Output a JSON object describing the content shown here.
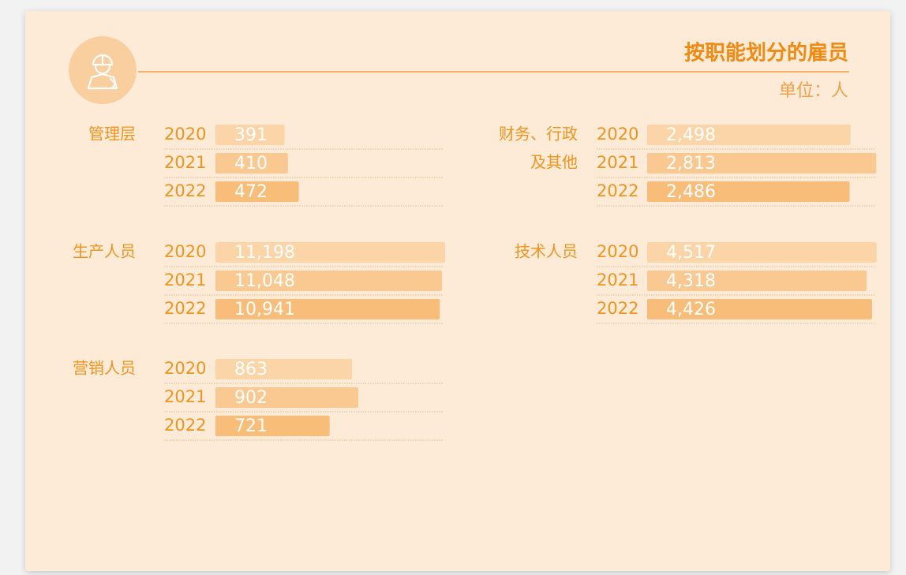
{
  "chart_data": {
    "type": "grouped-hbar",
    "title": "按职能划分的雇员",
    "unit": "单位：人",
    "categories": [
      "2020",
      "2021",
      "2022"
    ],
    "colors": [
      "#fbd5a8",
      "#f9c991",
      "#f8bd79"
    ],
    "groups": [
      {
        "label_lines": [
          "管理层"
        ],
        "values": [
          391,
          410,
          472
        ],
        "xlim": [
          0,
          1300
        ]
      },
      {
        "label_lines": [
          "生产人员"
        ],
        "values": [
          11198,
          11048,
          10941
        ],
        "value_labels": [
          "11,198",
          "11,048",
          "10,941"
        ],
        "xlim": [
          0,
          11200
        ]
      },
      {
        "label_lines": [
          "营销人员"
        ],
        "values": [
          863,
          902,
          721
        ],
        "xlim": [
          0,
          1450
        ]
      },
      {
        "label_lines": [
          "财务、行政",
          "及其他"
        ],
        "values": [
          2498,
          2813,
          2486
        ],
        "value_labels": [
          "2,498",
          "2,813",
          "2,486"
        ],
        "xlim": [
          0,
          2820
        ]
      },
      {
        "label_lines": [
          "技术人员"
        ],
        "values": [
          4517,
          4318,
          4426
        ],
        "value_labels": [
          "4,517",
          "4,318",
          "4,426"
        ],
        "xlim": [
          0,
          4520
        ]
      }
    ]
  }
}
